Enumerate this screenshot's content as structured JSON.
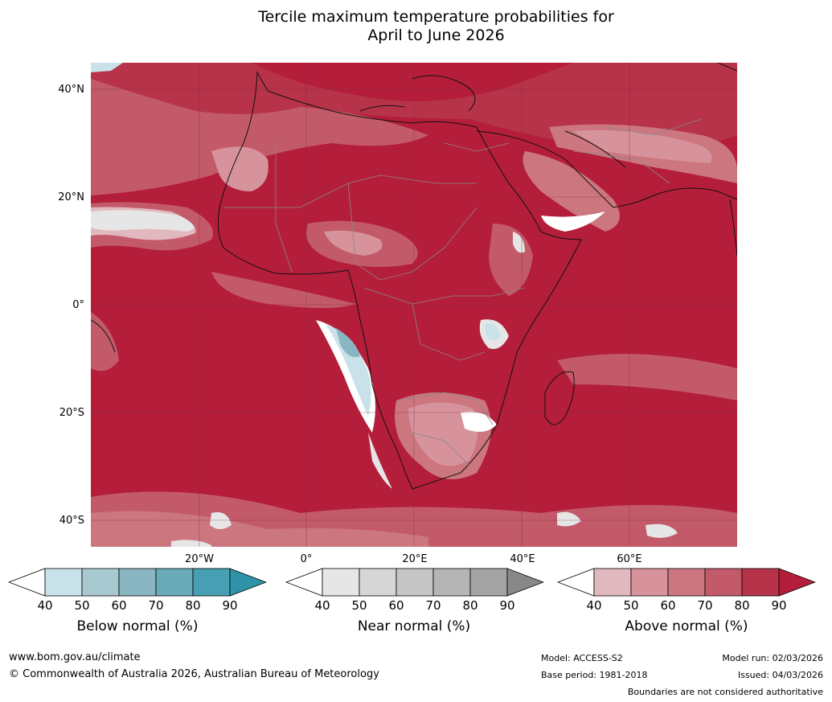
{
  "title": {
    "line1": "Tercile maximum temperature probabilities for",
    "line2": "April to June 2026"
  },
  "axes": {
    "lat_labels": [
      "40°N",
      "20°N",
      "0°",
      "20°S",
      "40°S"
    ],
    "lon_labels": [
      "20°W",
      "0°",
      "20°E",
      "40°E",
      "60°E"
    ]
  },
  "legend": {
    "below": {
      "label": "Below normal (%)",
      "ticks": [
        "40",
        "50",
        "60",
        "70",
        "80",
        "90"
      ],
      "colors": [
        "#ffffff",
        "#c9e2e9",
        "#a9c9d0",
        "#8ab6c1",
        "#6aaab9",
        "#469fb2",
        "#2e93a6"
      ]
    },
    "near": {
      "label": "Near normal (%)",
      "ticks": [
        "40",
        "50",
        "60",
        "70",
        "80",
        "90"
      ],
      "colors": [
        "#ffffff",
        "#e6e6e6",
        "#d6d6d6",
        "#c6c6c6",
        "#b5b5b5",
        "#a3a3a3",
        "#888888"
      ]
    },
    "above": {
      "label": "Above normal (%)",
      "ticks": [
        "40",
        "50",
        "60",
        "70",
        "80",
        "90"
      ],
      "colors": [
        "#ffffff",
        "#e2b8bf",
        "#d7939c",
        "#cc7680",
        "#c35a6a",
        "#b73349",
        "#b41e3a"
      ]
    }
  },
  "footer": {
    "website": "www.bom.gov.au/climate",
    "copyright": "© Commonwealth of Australia 2026, Australian Bureau of Meteorology",
    "model": "Model: ACCESS-S2",
    "base_period": "Base period: 1981-2018",
    "model_run": "Model run: 02/03/2026",
    "issued": "Issued: 04/03/2026",
    "disclaimer": "Boundaries are not considered authoritative"
  }
}
